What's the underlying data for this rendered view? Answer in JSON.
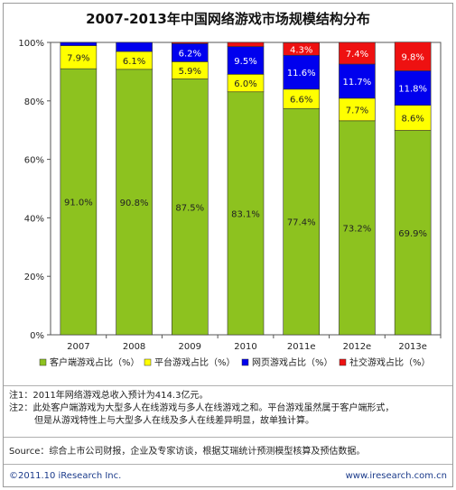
{
  "title": "2007-2013年中国网络游戏市场规模结构分布",
  "chart_data": {
    "type": "bar",
    "stacked": true,
    "title": "2007-2013年中国网络游戏市场规模结构分布",
    "categories": [
      "2007",
      "2008",
      "2009",
      "2010",
      "2011e",
      "2012e",
      "2013e"
    ],
    "ylim": [
      0,
      100
    ],
    "yticks": [
      "0%",
      "20%",
      "40%",
      "60%",
      "80%",
      "100%"
    ],
    "legend_position": "bottom",
    "series": [
      {
        "name": "客户端游戏占比（%）",
        "color": "#8dc21f",
        "values": [
          91.0,
          90.8,
          87.5,
          83.1,
          77.4,
          73.2,
          69.9
        ]
      },
      {
        "name": "平台游戏占比（%）",
        "color": "#ffff00",
        "values": [
          7.9,
          6.1,
          5.9,
          6.0,
          6.6,
          7.7,
          8.6
        ]
      },
      {
        "name": "网页游戏占比（%）",
        "color": "#0000ee",
        "values": [
          1.1,
          3.1,
          6.2,
          9.5,
          11.6,
          11.7,
          11.8
        ]
      },
      {
        "name": "社交游戏占比（%）",
        "color": "#ee1111",
        "values": [
          0.0,
          0.0,
          0.4,
          1.4,
          4.3,
          7.4,
          9.8
        ]
      }
    ],
    "labels": [
      [
        "91.0%",
        "90.8%",
        "87.5%",
        "83.1%",
        "77.4%",
        "73.2%",
        "69.9%"
      ],
      [
        "7.9%",
        "6.1%",
        "5.9%",
        "6.0%",
        "6.6%",
        "7.7%",
        "8.6%"
      ],
      [
        "",
        "",
        "6.2%",
        "9.5%",
        "11.6%",
        "11.7%",
        "11.8%"
      ],
      [
        "",
        "",
        "",
        "",
        "4.3%",
        "7.4%",
        "9.8%"
      ]
    ],
    "label_colors": [
      "#222222",
      "#222222",
      "#ffffff",
      "#ffffff"
    ]
  },
  "notes": {
    "note1": "注1：2011年网络游戏总收入预计为414.3亿元。",
    "note2_line1": "注2：此处客户端游戏为大型多人在线游戏与多人在线游戏之和。平台游戏虽然属于客户端形式，",
    "note2_line2": "但是从游戏特性上与大型多人在线及多人在线差异明显，故单独计算。"
  },
  "source": "Source：综合上市公司财报，企业及专家访谈，根据艾瑞统计预测模型核算及预估数据。",
  "footer": {
    "left": "©2011.10 iResearch Inc.",
    "right": "www.iresearch.com.cn"
  }
}
